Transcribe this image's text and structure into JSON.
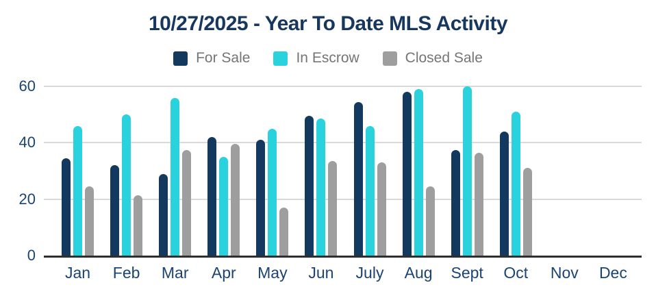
{
  "chart_data": {
    "type": "bar",
    "title": "10/27/2025 - Year To Date MLS Activity",
    "categories": [
      "Jan",
      "Feb",
      "Mar",
      "Apr",
      "May",
      "Jun",
      "July",
      "Aug",
      "Sept",
      "Oct",
      "Nov",
      "Dec"
    ],
    "series": [
      {
        "name": "For Sale",
        "color": "#133A5E",
        "values": [
          34.5,
          32,
          29,
          42,
          41,
          49.5,
          54.5,
          58,
          37.5,
          44,
          0,
          0
        ]
      },
      {
        "name": "In Escrow",
        "color": "#29D2DC",
        "values": [
          46,
          50,
          56,
          35,
          45,
          48.5,
          46,
          59,
          60,
          51,
          0,
          0
        ]
      },
      {
        "name": "Closed Sale",
        "color": "#9E9E9E",
        "values": [
          24.5,
          21.5,
          37.5,
          39.5,
          17,
          33.5,
          33,
          24.5,
          36.5,
          31,
          0,
          0
        ]
      }
    ],
    "xlabel": "",
    "ylabel": "",
    "ylim": [
      0,
      60
    ],
    "yticks": [
      0,
      20,
      40,
      60
    ],
    "grid": true,
    "legend_position": "top"
  },
  "colors": {
    "title": "#17375E",
    "axis_labels": "#1B4373",
    "legend_text": "#757575",
    "grid": "#D9D9D9",
    "baseline": "#2E2E2E",
    "background": "#FFFFFF"
  }
}
